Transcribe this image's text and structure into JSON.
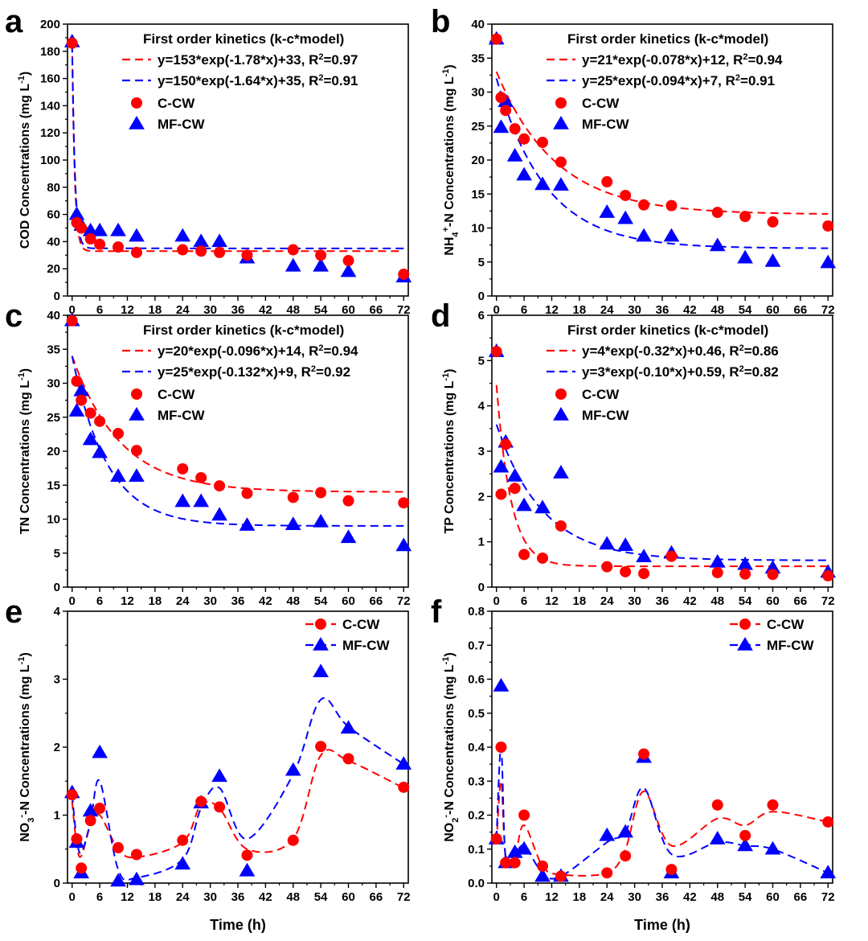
{
  "colors": {
    "ccw": "#ff0000",
    "mfcw": "#0000ff",
    "axis": "#000000"
  },
  "x_axis_label": "Time (h)",
  "chart_data": [
    {
      "panel": "a",
      "type": "scatter",
      "xlabel": "Time (h)",
      "ylabel": "COD Concentrations (mg L-1)",
      "ylabel_parts": [
        {
          "t": "COD Concentrations (mg L"
        },
        {
          "t": "-1",
          "sup": true
        },
        {
          "t": ")"
        }
      ],
      "xlim": [
        -1,
        73
      ],
      "ylim": [
        0,
        200
      ],
      "xticks": [
        0,
        6,
        12,
        18,
        24,
        30,
        36,
        42,
        48,
        54,
        60,
        66,
        72
      ],
      "yticks": [
        0,
        20,
        40,
        60,
        80,
        100,
        120,
        140,
        160,
        180,
        200
      ],
      "legend_title": "First order kinetics (k-c*model)",
      "legend_fits": [
        [
          {
            "t": "y=153*exp(-1.78*x)+33, R"
          },
          {
            "t": "2",
            "sup": true
          },
          {
            "t": "=0.97"
          }
        ],
        [
          {
            "t": "y=150*exp(-1.64*x)+35, R"
          },
          {
            "t": "2",
            "sup": true
          },
          {
            "t": "=0.91"
          }
        ]
      ],
      "legend_series": [
        "C-CW",
        "MF-CW"
      ],
      "series": [
        {
          "name": "C-CW",
          "marker": "circle",
          "x": [
            0,
            1,
            2,
            4,
            6,
            10,
            14,
            24,
            28,
            32,
            38,
            48,
            54,
            60,
            72
          ],
          "y": [
            186,
            54,
            50,
            42,
            38,
            36,
            32,
            34,
            33,
            32,
            30,
            34,
            30,
            26,
            16
          ]
        },
        {
          "name": "MF-CW",
          "marker": "triangle",
          "x": [
            0,
            1,
            2,
            4,
            6,
            10,
            14,
            24,
            28,
            32,
            38,
            48,
            54,
            60,
            72
          ],
          "y": [
            187,
            60,
            52,
            48,
            48,
            48,
            44,
            44,
            40,
            40,
            28,
            22,
            22,
            18,
            14
          ]
        }
      ],
      "fits": [
        {
          "name": "C-CW fit",
          "a": 153,
          "k": 1.78,
          "c": 33
        },
        {
          "name": "MF-CW fit",
          "a": 150,
          "k": 1.64,
          "c": 35
        }
      ]
    },
    {
      "panel": "b",
      "type": "scatter",
      "xlabel": "Time (h)",
      "ylabel": "NH4+-N Concentrations (mg L-1)",
      "ylabel_parts": [
        {
          "t": "NH"
        },
        {
          "t": "4",
          "sub": true
        },
        {
          "t": "+",
          "sup": true
        },
        {
          "t": "-N Concentrations (mg L"
        },
        {
          "t": "-1",
          "sup": true
        },
        {
          "t": ")"
        }
      ],
      "xlim": [
        -1,
        73
      ],
      "ylim": [
        0,
        40
      ],
      "xticks": [
        0,
        6,
        12,
        18,
        24,
        30,
        36,
        42,
        48,
        54,
        60,
        66,
        72
      ],
      "yticks": [
        0,
        5,
        10,
        15,
        20,
        25,
        30,
        35,
        40
      ],
      "legend_title": "First order kinetics (k-c*model)",
      "legend_fits": [
        [
          {
            "t": "y=21*exp(-0.078*x)+12, R"
          },
          {
            "t": "2",
            "sup": true
          },
          {
            "t": "=0.94"
          }
        ],
        [
          {
            "t": "y=25*exp(-0.094*x)+7,   R"
          },
          {
            "t": "2",
            "sup": true
          },
          {
            "t": "=0.91"
          }
        ]
      ],
      "legend_series": [
        "C-CW",
        "MF-CW"
      ],
      "series": [
        {
          "name": "C-CW",
          "marker": "circle",
          "x": [
            0,
            1,
            2,
            4,
            6,
            10,
            14,
            24,
            28,
            32,
            38,
            48,
            54,
            60,
            72
          ],
          "y": [
            37.8,
            29.2,
            27.3,
            24.6,
            23.1,
            22.6,
            19.7,
            16.8,
            14.8,
            13.4,
            13.3,
            12.3,
            11.7,
            10.9,
            10.3
          ]
        },
        {
          "name": "MF-CW",
          "marker": "triangle",
          "x": [
            0,
            1,
            2,
            4,
            6,
            10,
            14,
            24,
            28,
            32,
            38,
            48,
            54,
            60,
            72
          ],
          "y": [
            37.8,
            24.8,
            28.6,
            20.6,
            17.8,
            16.4,
            16.3,
            12.3,
            11.4,
            8.8,
            8.8,
            7.4,
            5.6,
            5.1,
            4.9
          ]
        }
      ],
      "fits": [
        {
          "name": "C-CW fit",
          "a": 21,
          "k": 0.078,
          "c": 12
        },
        {
          "name": "MF-CW fit",
          "a": 25,
          "k": 0.094,
          "c": 7
        }
      ]
    },
    {
      "panel": "c",
      "type": "scatter",
      "xlabel": "Time (h)",
      "ylabel": "TN Concentrations (mg L-1)",
      "ylabel_parts": [
        {
          "t": "TN Concentrations (mg L"
        },
        {
          "t": "-1",
          "sup": true
        },
        {
          "t": ")"
        }
      ],
      "xlim": [
        -1,
        73
      ],
      "ylim": [
        0,
        40
      ],
      "xticks": [
        0,
        6,
        12,
        18,
        24,
        30,
        36,
        42,
        48,
        54,
        60,
        66,
        72
      ],
      "yticks": [
        0,
        5,
        10,
        15,
        20,
        25,
        30,
        35,
        40
      ],
      "legend_title": "First order kinetics (k-c*model)",
      "legend_fits": [
        [
          {
            "t": "y=20*exp(-0.096*x)+14, R"
          },
          {
            "t": "2",
            "sup": true
          },
          {
            "t": "=0.94"
          }
        ],
        [
          {
            "t": "y=25*exp(-0.132*x)+9,    R"
          },
          {
            "t": "2",
            "sup": true
          },
          {
            "t": "=0.92"
          }
        ]
      ],
      "legend_series": [
        "C-CW",
        "MF-CW"
      ],
      "series": [
        {
          "name": "C-CW",
          "marker": "circle",
          "x": [
            0,
            1,
            2,
            4,
            6,
            10,
            14,
            24,
            28,
            32,
            38,
            48,
            54,
            60,
            72
          ],
          "y": [
            39.2,
            30.3,
            27.5,
            25.6,
            24.4,
            22.6,
            20.1,
            17.4,
            16.1,
            14.9,
            13.8,
            13.2,
            13.9,
            12.7,
            12.4
          ]
        },
        {
          "name": "MF-CW",
          "marker": "triangle",
          "x": [
            0,
            1,
            2,
            4,
            6,
            10,
            14,
            24,
            28,
            32,
            38,
            48,
            54,
            60,
            72
          ],
          "y": [
            39.2,
            25.9,
            28.9,
            21.7,
            19.8,
            16.3,
            16.3,
            12.6,
            12.6,
            10.6,
            9.1,
            9.2,
            9.6,
            7.3,
            6.1
          ]
        }
      ],
      "fits": [
        {
          "name": "C-CW fit",
          "a": 20,
          "k": 0.096,
          "c": 14
        },
        {
          "name": "MF-CW fit",
          "a": 25,
          "k": 0.132,
          "c": 9
        }
      ]
    },
    {
      "panel": "d",
      "type": "scatter",
      "xlabel": "Time (h)",
      "ylabel": "TP Concentrations (mg L-1)",
      "ylabel_parts": [
        {
          "t": "TP Concentrations (mg L"
        },
        {
          "t": "-1",
          "sup": true
        },
        {
          "t": ")"
        }
      ],
      "xlim": [
        -1,
        73
      ],
      "ylim": [
        0,
        6
      ],
      "xticks": [
        0,
        6,
        12,
        18,
        24,
        30,
        36,
        42,
        48,
        54,
        60,
        66,
        72
      ],
      "yticks": [
        0,
        1,
        2,
        3,
        4,
        5,
        6
      ],
      "legend_title": "First order kinetics (k-c*model)",
      "legend_fits": [
        [
          {
            "t": "y=4*exp(-0.32*x)+0.46, R"
          },
          {
            "t": "2",
            "sup": true
          },
          {
            "t": "=0.86"
          }
        ],
        [
          {
            "t": "y=3*exp(-0.10*x)+0.59, R"
          },
          {
            "t": "2",
            "sup": true
          },
          {
            "t": "=0.82"
          }
        ]
      ],
      "legend_series": [
        "C-CW",
        "MF-CW"
      ],
      "series": [
        {
          "name": "C-CW",
          "marker": "circle",
          "x": [
            0,
            1,
            2,
            4,
            6,
            10,
            14,
            24,
            28,
            32,
            38,
            48,
            54,
            60,
            72
          ],
          "y": [
            5.2,
            2.05,
            3.15,
            2.18,
            0.72,
            0.64,
            1.35,
            0.45,
            0.34,
            0.3,
            0.68,
            0.32,
            0.29,
            0.28,
            0.25
          ]
        },
        {
          "name": "MF-CW",
          "marker": "triangle",
          "x": [
            0,
            1,
            2,
            4,
            6,
            10,
            14,
            24,
            28,
            32,
            38,
            48,
            54,
            60,
            72
          ],
          "y": [
            5.2,
            2.65,
            3.2,
            2.45,
            1.8,
            1.75,
            2.52,
            0.95,
            0.92,
            0.67,
            0.75,
            0.55,
            0.5,
            0.42,
            0.33
          ]
        }
      ],
      "fits": [
        {
          "name": "C-CW fit",
          "a": 4,
          "k": 0.32,
          "c": 0.46
        },
        {
          "name": "MF-CW fit",
          "a": 3,
          "k": 0.1,
          "c": 0.59
        }
      ]
    },
    {
      "panel": "e",
      "type": "line",
      "xlabel": "Time (h)",
      "ylabel": "NO3--N Concentrations (mg L-1)",
      "ylabel_parts": [
        {
          "t": "NO"
        },
        {
          "t": "3",
          "sub": true
        },
        {
          "t": "-",
          "sup": true
        },
        {
          "t": "-N Concentrations (mg L"
        },
        {
          "t": "-1",
          "sup": true
        },
        {
          "t": ")"
        }
      ],
      "xlim": [
        -1,
        73
      ],
      "ylim": [
        0,
        4
      ],
      "xticks": [
        0,
        6,
        12,
        18,
        24,
        30,
        36,
        42,
        48,
        54,
        60,
        66,
        72
      ],
      "yticks": [
        0,
        1,
        2,
        3,
        4
      ],
      "legend_series": [
        "C-CW",
        "MF-CW"
      ],
      "series": [
        {
          "name": "C-CW",
          "marker": "circle",
          "x": [
            0,
            1,
            2,
            4,
            6,
            10,
            14,
            24,
            28,
            32,
            38,
            48,
            54,
            60,
            72
          ],
          "y": [
            1.3,
            0.65,
            0.22,
            0.92,
            1.1,
            0.52,
            0.42,
            0.63,
            1.2,
            1.12,
            0.41,
            0.63,
            2.01,
            1.83,
            1.41
          ]
        },
        {
          "name": "MF-CW",
          "marker": "triangle",
          "x": [
            0,
            1,
            2,
            4,
            6,
            10,
            14,
            24,
            28,
            32,
            38,
            48,
            54,
            60,
            72
          ],
          "y": [
            1.33,
            0.6,
            0.15,
            1.06,
            1.92,
            0.03,
            0.05,
            0.28,
            1.18,
            1.57,
            0.18,
            1.66,
            3.11,
            2.28,
            1.75
          ]
        }
      ],
      "dashed": [
        {
          "name": "C-CW",
          "x": [
            0,
            1,
            2,
            4,
            6,
            10,
            14,
            24,
            28,
            32,
            38,
            48,
            54,
            60,
            72
          ],
          "y": [
            1.2,
            0.55,
            0.4,
            0.85,
            1.0,
            0.5,
            0.38,
            0.6,
            1.15,
            1.1,
            0.5,
            0.65,
            1.88,
            1.8,
            1.4
          ]
        },
        {
          "name": "MF-CW",
          "x": [
            0,
            1,
            2,
            4,
            6,
            10,
            14,
            24,
            28,
            32,
            38,
            48,
            54,
            60,
            72
          ],
          "y": [
            1.3,
            0.65,
            0.45,
            0.9,
            1.5,
            0.2,
            0.08,
            0.35,
            1.1,
            1.4,
            0.65,
            1.6,
            2.7,
            2.3,
            1.75
          ]
        }
      ]
    },
    {
      "panel": "f",
      "type": "line",
      "xlabel": "Time (h)",
      "ylabel": "NO2--N Concentrations (mg L-1)",
      "ylabel_parts": [
        {
          "t": "NO"
        },
        {
          "t": "2",
          "sub": true
        },
        {
          "t": "-",
          "sup": true
        },
        {
          "t": "-N Concentrations (mg L"
        },
        {
          "t": "-1",
          "sup": true
        },
        {
          "t": ")"
        }
      ],
      "xlim": [
        -1,
        73
      ],
      "ylim": [
        0,
        0.8
      ],
      "xticks": [
        0,
        6,
        12,
        18,
        24,
        30,
        36,
        42,
        48,
        54,
        60,
        66,
        72
      ],
      "yticks": [
        0.0,
        0.1,
        0.2,
        0.3,
        0.4,
        0.5,
        0.6,
        0.7,
        0.8
      ],
      "legend_series": [
        "C-CW",
        "MF-CW"
      ],
      "series": [
        {
          "name": "C-CW",
          "marker": "circle",
          "x": [
            0,
            1,
            2,
            4,
            6,
            10,
            14,
            24,
            28,
            32,
            38,
            48,
            54,
            60,
            72
          ],
          "y": [
            0.13,
            0.4,
            0.06,
            0.06,
            0.2,
            0.05,
            0.02,
            0.03,
            0.08,
            0.38,
            0.04,
            0.23,
            0.14,
            0.23,
            0.18
          ]
        },
        {
          "name": "MF-CW",
          "marker": "triangle",
          "x": [
            0,
            1,
            2,
            4,
            6,
            10,
            14,
            24,
            28,
            32,
            38,
            48,
            54,
            60,
            72
          ],
          "y": [
            0.13,
            0.58,
            0.06,
            0.09,
            0.1,
            0.02,
            0.02,
            0.14,
            0.15,
            0.37,
            0.03,
            0.13,
            0.11,
            0.1,
            0.03
          ]
        }
      ],
      "dashed": [
        {
          "name": "C-CW",
          "x": [
            0,
            1,
            2,
            4,
            6,
            10,
            14,
            24,
            28,
            32,
            38,
            48,
            54,
            60,
            72
          ],
          "y": [
            0.12,
            0.3,
            0.08,
            0.08,
            0.17,
            0.05,
            0.025,
            0.03,
            0.1,
            0.27,
            0.11,
            0.19,
            0.17,
            0.21,
            0.18
          ]
        },
        {
          "name": "MF-CW",
          "x": [
            0,
            1,
            2,
            4,
            6,
            10,
            14,
            24,
            28,
            32,
            38,
            48,
            54,
            60,
            72
          ],
          "y": [
            0.13,
            0.4,
            0.07,
            0.08,
            0.11,
            0.03,
            0.02,
            0.12,
            0.15,
            0.28,
            0.085,
            0.12,
            0.11,
            0.1,
            0.03
          ]
        }
      ]
    }
  ]
}
